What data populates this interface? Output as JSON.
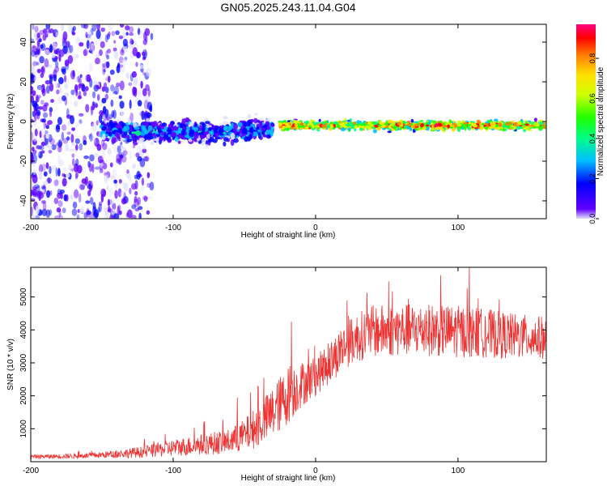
{
  "title": "GN05.2025.243.11.04.G04",
  "colors": {
    "snr_line": "#ee3333",
    "axis": "#000000",
    "background": "#ffffff"
  },
  "chart_data": [
    {
      "type": "heatmap",
      "title": "GN05.2025.243.11.04.G04",
      "xlabel": "Height of straight line (km)",
      "ylabel": "Frequency (Hz)",
      "xlim": [
        -200,
        162
      ],
      "ylim": [
        -49,
        49
      ],
      "x_ticks": [
        -200,
        -100,
        0,
        100
      ],
      "y_ticks": [
        -40,
        -20,
        0,
        20,
        40
      ],
      "colorbar": {
        "label": "Normalized spectral amplitude",
        "range": [
          0.0,
          0.97
        ],
        "ticks": [
          0.0,
          0.2,
          0.4,
          0.6,
          0.8
        ],
        "colormap": [
          "#e0e0ff",
          "#6000ff",
          "#0000ff",
          "#00c0ff",
          "#00ff80",
          "#20ff00",
          "#d0ff00",
          "#ffe000",
          "#ff8000",
          "#ff0000",
          "#ff0080"
        ]
      },
      "features": [
        {
          "name": "scattered noise",
          "x_range": [
            -200,
            -115
          ],
          "y_range": [
            -49,
            49
          ],
          "amplitude": 0.15
        },
        {
          "name": "faint signal",
          "x_range": [
            -150,
            -30
          ],
          "center_hz": -5,
          "spread_hz": 8,
          "amplitude": 0.3
        },
        {
          "name": "strong carrier",
          "x_range": [
            -25,
            162
          ],
          "center_hz": -2,
          "spread_hz": 2,
          "amplitude": 0.9
        }
      ]
    },
    {
      "type": "line",
      "xlabel": "Height of straight line (km)",
      "ylabel": "SNR (10 * v/v)",
      "xlim": [
        -200,
        162
      ],
      "ylim": [
        0,
        5900
      ],
      "x_ticks": [
        -200,
        -100,
        0,
        100
      ],
      "y_ticks": [
        1000,
        2000,
        3000,
        4000,
        5000
      ],
      "series": [
        {
          "name": "SNR",
          "envelope_x": [
            -200,
            -160,
            -140,
            -120,
            -100,
            -80,
            -60,
            -50,
            -40,
            -30,
            -20,
            -10,
            0,
            10,
            20,
            30,
            40,
            60,
            80,
            100,
            120,
            140,
            162
          ],
          "envelope_mean": [
            150,
            180,
            230,
            300,
            420,
            520,
            620,
            800,
            1100,
            1500,
            2000,
            2350,
            2600,
            3000,
            3500,
            3800,
            3950,
            4000,
            4000,
            3950,
            3900,
            3800,
            3750
          ],
          "envelope_spread": [
            60,
            80,
            120,
            180,
            260,
            320,
            380,
            500,
            650,
            800,
            900,
            700,
            600,
            650,
            700,
            750,
            800,
            800,
            800,
            800,
            750,
            700,
            650
          ],
          "peaks": [
            [
              -17,
              4250
            ],
            [
              -18,
              2900
            ],
            [
              -55,
              1950
            ],
            [
              108,
              5900
            ]
          ]
        }
      ]
    }
  ]
}
